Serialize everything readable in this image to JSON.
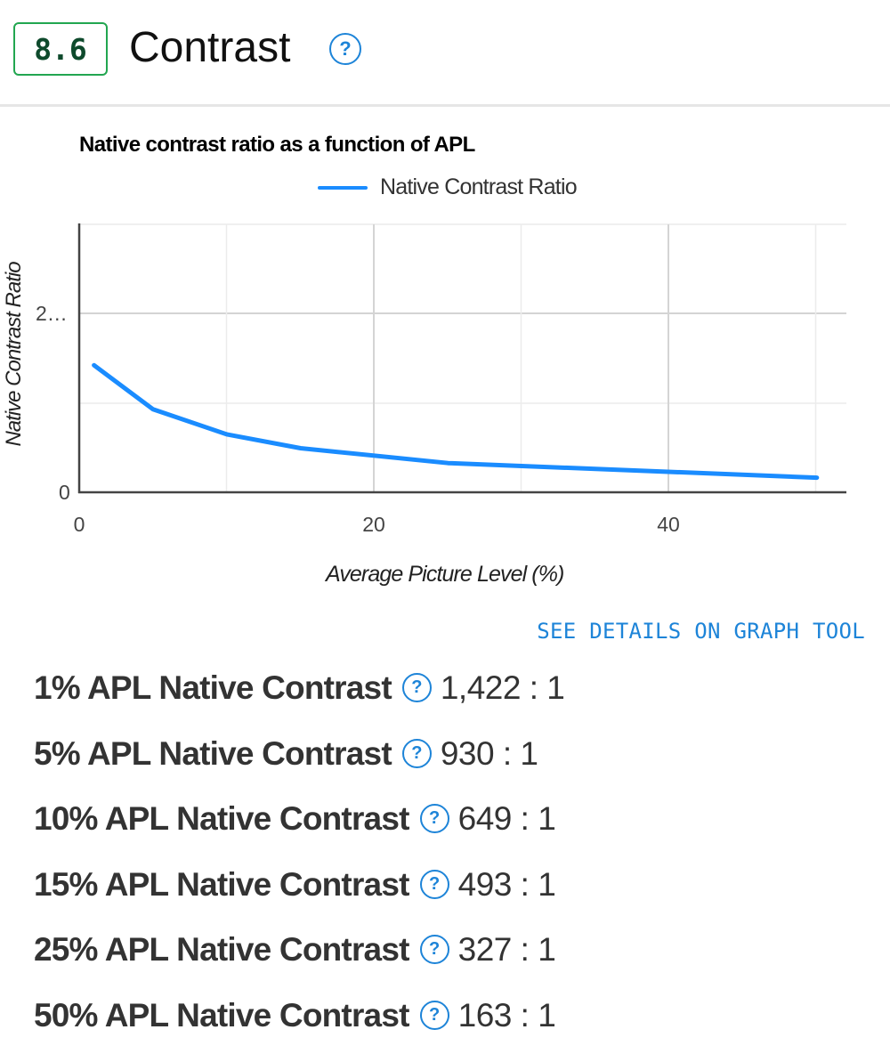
{
  "header": {
    "score": "8.6",
    "title": "Contrast",
    "help_icon": "question-circle-icon"
  },
  "colors": {
    "badge_border": "#22a650",
    "badge_text": "#0e4a2c",
    "accent": "#1d84d8",
    "series_line": "#1a8cff"
  },
  "chart_data": {
    "type": "line",
    "title": "Native contrast ratio as a function of APL",
    "xlabel": "Average Picture Level (%)",
    "ylabel": "Native Contrast Ratio",
    "legend": [
      "Native Contrast Ratio"
    ],
    "legend_position": "top",
    "x": [
      1,
      5,
      10,
      15,
      25,
      50
    ],
    "series": [
      {
        "name": "Native Contrast Ratio",
        "values": [
          1422,
          930,
          649,
          493,
          327,
          163
        ]
      }
    ],
    "x_ticks": [
      "0",
      "20",
      "40"
    ],
    "y_ticks": [
      "0",
      "2…"
    ],
    "xlim": [
      0,
      52
    ],
    "ylim": [
      0,
      3000
    ],
    "grid": true
  },
  "chart": {
    "title": "Native contrast ratio as a function of APL",
    "legend_label": "Native Contrast Ratio",
    "ylabel": "Native Contrast Ratio",
    "xlabel": "Average Picture Level (%)",
    "ytick_0": "0",
    "ytick_2000": "2…",
    "xtick_0": "0",
    "xtick_20": "20",
    "xtick_40": "40"
  },
  "link": {
    "label": "SEE DETAILS ON GRAPH TOOL"
  },
  "metrics": [
    {
      "label": "1% APL Native Contrast",
      "value": "1,422 : 1"
    },
    {
      "label": "5% APL Native Contrast",
      "value": "930 : 1"
    },
    {
      "label": "10% APL Native Contrast",
      "value": "649 : 1"
    },
    {
      "label": "15% APL Native Contrast",
      "value": "493 : 1"
    },
    {
      "label": "25% APL Native Contrast",
      "value": "327 : 1"
    },
    {
      "label": "50% APL Native Contrast",
      "value": "163 : 1"
    }
  ],
  "help_glyph": "?"
}
